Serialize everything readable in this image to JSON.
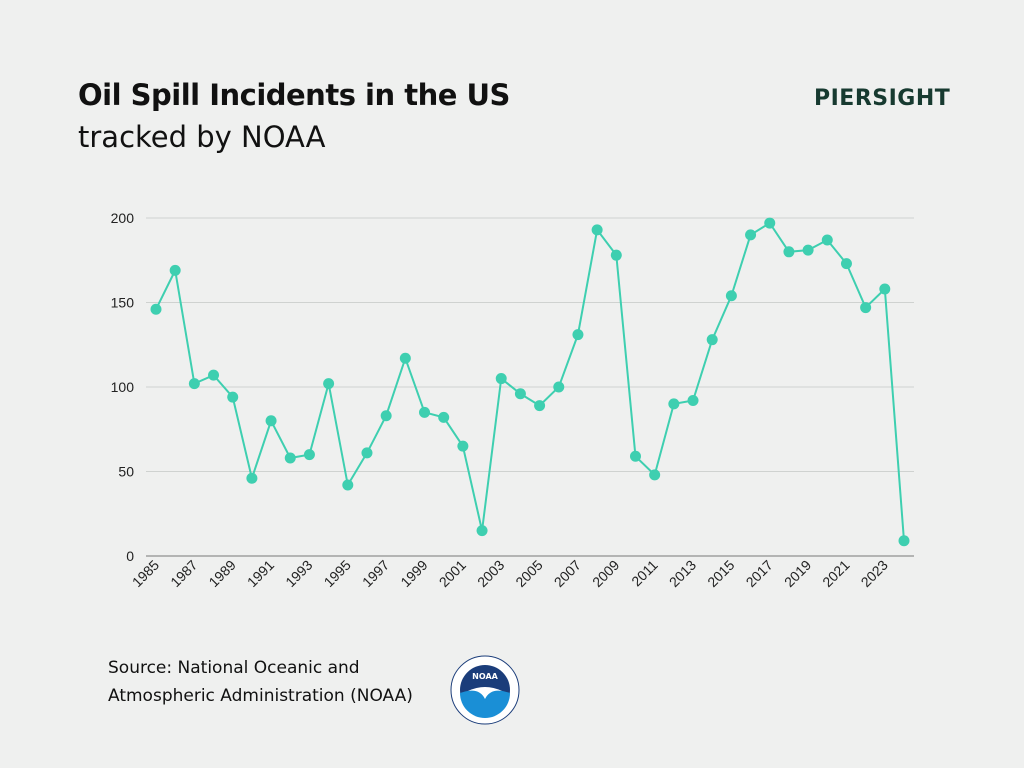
{
  "header": {
    "title": "Oil Spill Incidents in the US",
    "subtitle": "tracked by NOAA"
  },
  "logo": {
    "text": "PIERSIGHT",
    "color": "#173a30"
  },
  "source": {
    "line1": "Source: National Oceanic and",
    "line2": "Atmospheric Administration (NOAA)"
  },
  "noaa_logo": {
    "text": "NOAA"
  },
  "chart_data": {
    "type": "line",
    "title": "",
    "xlabel": "",
    "ylabel": "",
    "ylim": [
      0,
      200
    ],
    "yticks": [
      0,
      50,
      100,
      150,
      200
    ],
    "grid": true,
    "color": "#3ecfb0",
    "x": [
      1985,
      1986,
      1987,
      1988,
      1989,
      1990,
      1991,
      1992,
      1993,
      1994,
      1995,
      1996,
      1997,
      1998,
      1999,
      2000,
      2001,
      2002,
      2003,
      2004,
      2005,
      2006,
      2007,
      2008,
      2009,
      2010,
      2011,
      2012,
      2013,
      2014,
      2015,
      2016,
      2017,
      2018,
      2019,
      2020,
      2021,
      2022,
      2023,
      2024
    ],
    "xtick_labels": [
      "1985",
      "1987",
      "1989",
      "1991",
      "1993",
      "1995",
      "1997",
      "1999",
      "2001",
      "2003",
      "2005",
      "2007",
      "2009",
      "2011",
      "2013",
      "2015",
      "2017",
      "2019",
      "2021",
      "2023"
    ],
    "values": [
      146,
      169,
      102,
      107,
      94,
      46,
      80,
      58,
      60,
      102,
      42,
      61,
      83,
      117,
      85,
      82,
      65,
      15,
      105,
      96,
      89,
      100,
      131,
      193,
      178,
      59,
      48,
      90,
      92,
      128,
      154,
      190,
      197,
      180,
      181,
      187,
      173,
      147,
      158,
      9
    ]
  }
}
